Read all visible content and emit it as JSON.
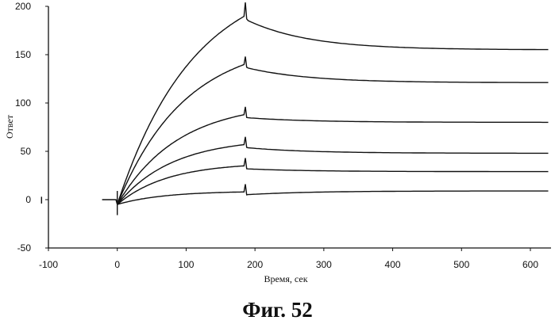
{
  "caption": "Фиг.  52",
  "chart_data": {
    "type": "line",
    "title": "",
    "xlabel": "Время, сек",
    "ylabel": "Ответ",
    "xlim": [
      -100,
      630
    ],
    "ylim": [
      -50,
      200
    ],
    "x_ticks": [
      -100,
      0,
      100,
      200,
      300,
      400,
      500,
      600
    ],
    "y_ticks": [
      -50,
      0,
      50,
      100,
      150,
      200
    ],
    "grid": false,
    "legend": "none",
    "colors": {
      "line": "#111111",
      "axis": "#111111"
    },
    "injection_start": 0,
    "injection_end": 185,
    "series": [
      {
        "plateau": 190,
        "end": 155
      },
      {
        "plateau": 140,
        "end": 121
      },
      {
        "plateau": 88,
        "end": 80
      },
      {
        "plateau": 57,
        "end": 48
      },
      {
        "plateau": 35,
        "end": 29
      },
      {
        "plateau": 8,
        "end": 9
      }
    ]
  }
}
